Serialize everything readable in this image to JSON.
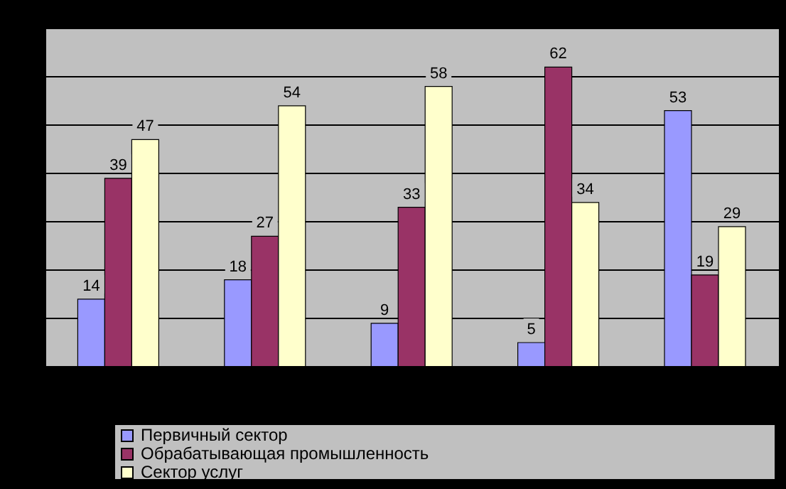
{
  "chart_data": {
    "type": "bar",
    "categories": [
      null,
      null,
      null,
      null,
      null
    ],
    "series": [
      {
        "name": "Первичный сектор",
        "color": "#9999ff",
        "values": [
          14,
          18,
          9,
          5,
          53
        ]
      },
      {
        "name": "Обрабатывающая промышленность",
        "color": "#993366",
        "values": [
          39,
          27,
          33,
          62,
          19
        ]
      },
      {
        "name": "Сектор услуг",
        "color": "#ffffcc",
        "values": [
          47,
          54,
          58,
          34,
          29
        ]
      }
    ],
    "ylim": [
      0,
      70
    ],
    "yticks": [
      {
        "value": 0,
        "label": null
      },
      {
        "value": 10,
        "label": null
      },
      {
        "value": 20,
        "label": null
      },
      {
        "value": 30,
        "label": null
      },
      {
        "value": 40,
        "label": null
      },
      {
        "value": 50,
        "label": null
      },
      {
        "value": 60,
        "label": null
      },
      {
        "value": 70,
        "label": null
      }
    ],
    "grid": "y",
    "data_labels": true,
    "legend": "bottom"
  }
}
